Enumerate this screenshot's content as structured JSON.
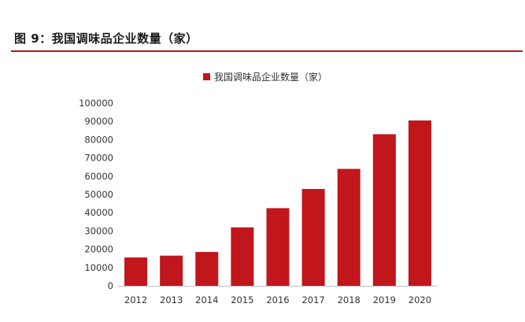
{
  "figure": {
    "title": "图 9：我国调味品企业数量（家）"
  },
  "colors": {
    "bar": "#c0161c",
    "rule": "#c0161c",
    "axis": "#bfbfbf"
  },
  "chart_data": {
    "type": "bar",
    "legend": "我国调味品企业数量（家）",
    "legend_position": "top",
    "categories": [
      "2012",
      "2013",
      "2014",
      "2015",
      "2016",
      "2017",
      "2018",
      "2019",
      "2020"
    ],
    "series": [
      {
        "name": "我国调味品企业数量（家）",
        "values": [
          15500,
          16500,
          18500,
          32000,
          42500,
          53000,
          64000,
          83000,
          90500
        ]
      }
    ],
    "yticks": [
      "0",
      "10000",
      "20000",
      "30000",
      "40000",
      "50000",
      "60000",
      "70000",
      "80000",
      "90000",
      "100000"
    ],
    "ylim": [
      0,
      100000
    ],
    "grid": false
  }
}
